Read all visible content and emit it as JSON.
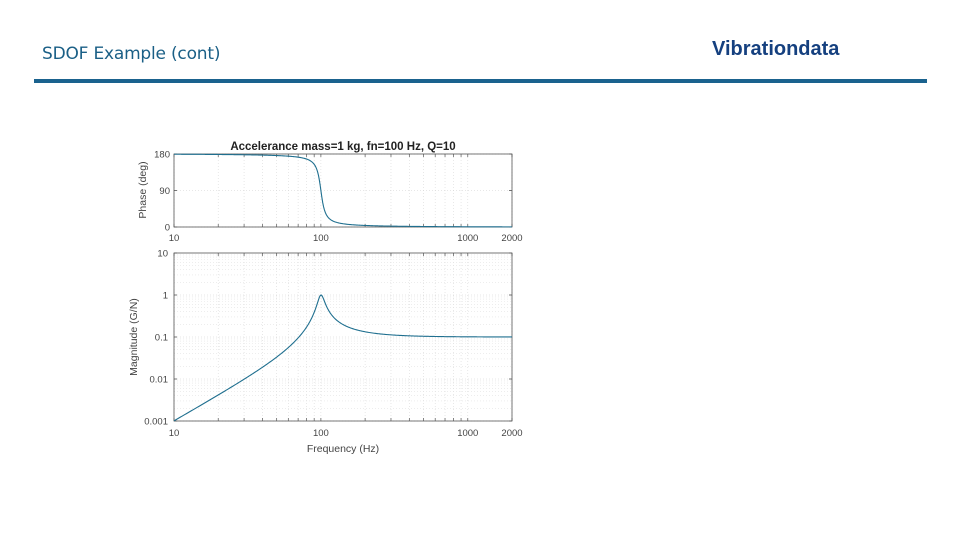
{
  "header": {
    "title": "SDOF Example (cont)",
    "brand": "Vibrationdata",
    "accent_color": "#1a628e",
    "brand_color": "#15407f"
  },
  "chart_data": [
    {
      "type": "line",
      "panel": "phase",
      "title": "Accelerance  mass=1 kg, fn=100 Hz, Q=10",
      "xlabel": "",
      "ylabel": "Phase (deg)",
      "xscale": "log",
      "xlim": [
        10,
        2000
      ],
      "ylim": [
        0,
        180
      ],
      "xticks": [
        10,
        100,
        1000,
        2000
      ],
      "xtick_labels": [
        "10",
        "100",
        "1000",
        "2000"
      ],
      "yticks": [
        0,
        90,
        180
      ],
      "ytick_labels": [
        "0",
        "90",
        "180"
      ],
      "grid": true,
      "line_color": "#1f6f8f",
      "series": [
        {
          "name": "phase",
          "x": [
            10,
            20,
            40,
            60,
            80,
            90,
            95,
            100,
            105,
            110,
            120,
            150,
            200,
            400,
            1000,
            2000
          ],
          "y": [
            179.4,
            178.5,
            176.9,
            174.6,
            168.8,
            160.5,
            152.7,
            90,
            27.3,
            17.4,
            11.3,
            6.4,
            3.8,
            1.5,
            0.6,
            0.3
          ]
        }
      ]
    },
    {
      "type": "line",
      "panel": "magnitude",
      "title": "",
      "xlabel": "Frequency (Hz)",
      "ylabel": "Magnitude (G/N)",
      "xscale": "log",
      "yscale": "log",
      "xlim": [
        10,
        2000
      ],
      "ylim": [
        0.001,
        10
      ],
      "xticks": [
        10,
        100,
        1000,
        2000
      ],
      "xtick_labels": [
        "10",
        "100",
        "1000",
        "2000"
      ],
      "yticks": [
        0.001,
        0.01,
        0.1,
        1,
        10
      ],
      "ytick_labels": [
        "0.001",
        "0.01",
        "0.1",
        "1",
        "10"
      ],
      "grid": true,
      "line_color": "#1f6f8f",
      "series": [
        {
          "name": "magnitude",
          "x": [
            10,
            20,
            40,
            60,
            80,
            90,
            95,
            100,
            105,
            110,
            120,
            150,
            200,
            400,
            1000,
            2000
          ],
          "y": [
            0.00103,
            0.00425,
            0.0194,
            0.0559,
            0.176,
            0.385,
            0.615,
            1.02,
            0.568,
            0.423,
            0.299,
            0.184,
            0.136,
            0.109,
            0.103,
            0.102
          ]
        }
      ]
    }
  ]
}
